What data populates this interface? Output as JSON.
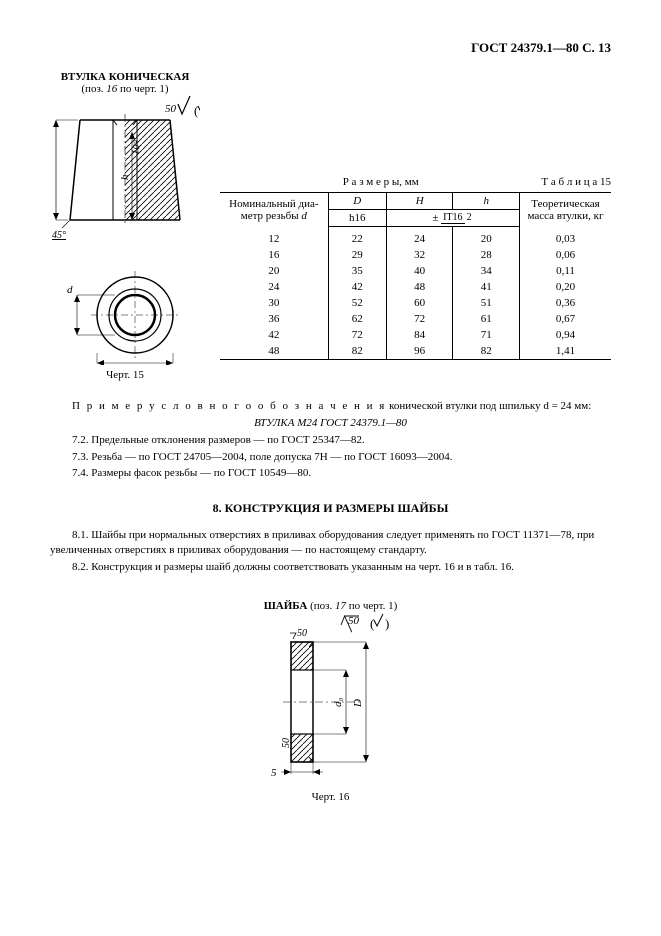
{
  "header": {
    "doc_id": "ГОСТ 24379.1—80 С. 13"
  },
  "figure15": {
    "title": "ВТУЛКА КОНИЧЕСКАЯ",
    "subtitle": "(поз. 16 по черт. 1)",
    "caption": "Черт. 15",
    "label_H": "H",
    "label_d": "d",
    "label_D": "D",
    "label_h": "h",
    "label_45": "45°",
    "label_10": "10°",
    "label_50": "50"
  },
  "table15": {
    "caption_left": "Р а з м е р ы,  мм",
    "caption_right": "Т а б л и ц а 15",
    "headers": {
      "col1": "Номинальный диаметр резьбы d",
      "col2_top": "D",
      "col2_bot": "h16",
      "col3": "H",
      "col4": "h",
      "col34_bot_prefix": "±",
      "col34_frac_num": "IT16",
      "col34_frac_den": "2",
      "col5": "Теоретическая масса втулки, кг"
    },
    "rows": [
      {
        "d": "12",
        "D": "22",
        "H": "24",
        "h": "20",
        "m": "0,03"
      },
      {
        "d": "16",
        "D": "29",
        "H": "32",
        "h": "28",
        "m": "0,06"
      },
      {
        "d": "20",
        "D": "35",
        "H": "40",
        "h": "34",
        "m": "0,11"
      },
      {
        "d": "24",
        "D": "42",
        "H": "48",
        "h": "41",
        "m": "0,20"
      },
      {
        "d": "30",
        "D": "52",
        "H": "60",
        "h": "51",
        "m": "0,36"
      },
      {
        "d": "36",
        "D": "62",
        "H": "72",
        "h": "61",
        "m": "0,67"
      },
      {
        "d": "42",
        "D": "72",
        "H": "84",
        "h": "71",
        "m": "0,94"
      },
      {
        "d": "48",
        "D": "82",
        "H": "96",
        "h": "82",
        "m": "1,41"
      }
    ]
  },
  "notes": {
    "example_label": "П р и м е р   у с л о в н о г о   о б о з н а ч е н и я",
    "example_text": " конической втулки под шпильку d = 24 мм:",
    "example_line2": "ВТУЛКА М24 ГОСТ 24379.1—80",
    "n72": "7.2.   Предельные отклонения размеров — по ГОСТ 25347—82.",
    "n73": "7.3.   Резьба — по ГОСТ 24705—2004, поле допуска 7Н — по ГОСТ 16093—2004.",
    "n74": "7.4.   Размеры фасок резьбы — по ГОСТ 10549—80."
  },
  "section8": {
    "heading": "8.   КОНСТРУКЦИЯ И РАЗМЕРЫ ШАЙБЫ",
    "p81": "8.1.  Шайбы при нормальных отверстиях в приливах оборудования следует применять по ГОСТ 11371—78, при увеличенных отверстиях в приливах оборудования — по настоящему стандарту.",
    "p82": "8.2.   Конструкция и размеры шайб должны соответствовать указанным на черт. 16 и в табл. 16."
  },
  "figure16": {
    "title": "ШАЙБА (поз. 17 по черт. 1)",
    "caption": "Черт. 16",
    "label_50a": "50",
    "label_50b": "50",
    "label_5": "5",
    "label_d0": "d₀",
    "label_D": "D"
  },
  "style": {
    "text_color": "#000000",
    "bg_color": "#ffffff",
    "hatch_color": "#000000"
  }
}
